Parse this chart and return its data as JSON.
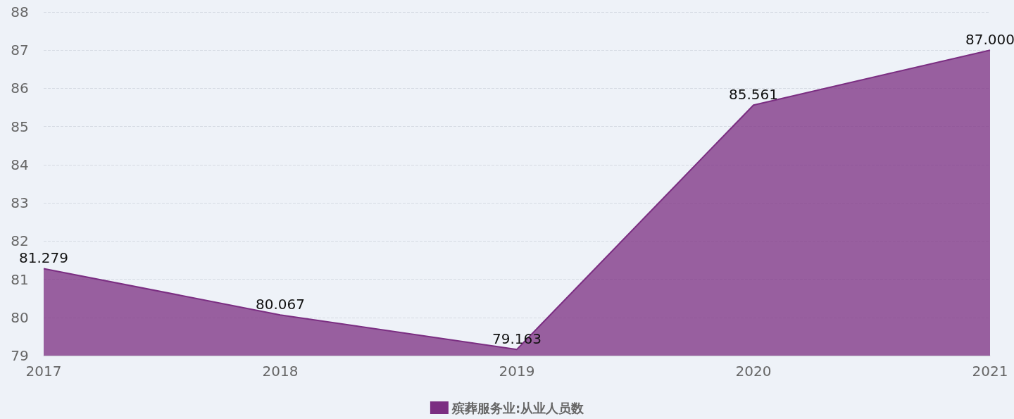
{
  "chart_data": {
    "type": "area",
    "categories": [
      "2017",
      "2018",
      "2019",
      "2020",
      "2021"
    ],
    "series": [
      {
        "name": "殡葬服务业:从业人员数",
        "color": "#7b2e82",
        "values": [
          81.279,
          80.067,
          79.163,
          85.561,
          87.0
        ],
        "value_labels": [
          "81.279",
          "80.067",
          "79.163",
          "85.561",
          "87.000"
        ]
      }
    ],
    "ylim": [
      79,
      88
    ],
    "yticks": [
      79,
      80,
      81,
      82,
      83,
      84,
      85,
      86,
      87,
      88
    ],
    "grid": "y",
    "legend": "bottom",
    "marker": "none"
  }
}
